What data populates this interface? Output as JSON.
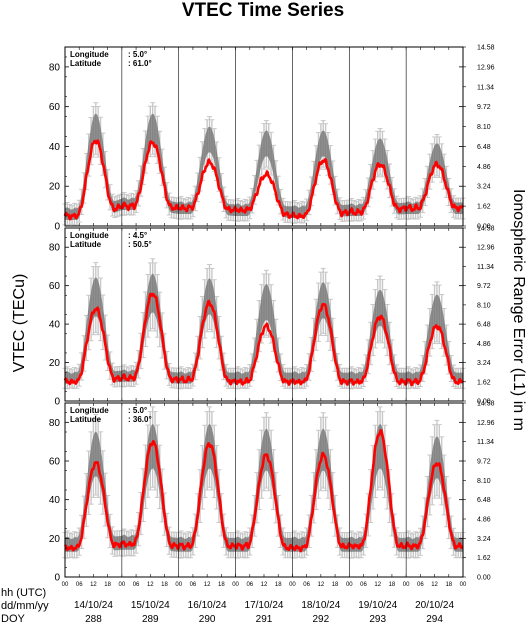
{
  "title": "VTEC Time Series",
  "y_label_left": "VTEC (TECu)",
  "y_label_right": "Ionospheric Range Error (L1) in m",
  "row_labels": [
    "hh (UTC)",
    "dd/mm/yy",
    "DOY"
  ],
  "colors": {
    "mean_curve": "#ff0000",
    "spread_band": "#6e6e6e",
    "error_bars": "#c8c8c8",
    "frame": "#000000"
  },
  "chart_data": [
    {
      "type": "line",
      "panel": "top",
      "location": {
        "longitude_label": "Longitude",
        "longitude": ": 5.0°",
        "latitude_label": "Latitude",
        "latitude": ": 61.0°"
      },
      "ylim": [
        0,
        90
      ],
      "yticks": [
        0,
        20,
        40,
        60,
        80
      ],
      "right_ticks": [
        "0.00",
        "1.62",
        "3.24",
        "4.86",
        "6.48",
        "8.10",
        "9.72",
        "11.34",
        "12.96",
        "14.58"
      ],
      "hour_ticks": [
        "00",
        "06",
        "12",
        "18"
      ],
      "days": [
        {
          "date": "14/10/24",
          "doy": "288"
        },
        {
          "date": "15/10/24",
          "doy": "289"
        },
        {
          "date": "16/10/24",
          "doy": "290"
        },
        {
          "date": "17/10/24",
          "doy": "291"
        },
        {
          "date": "18/10/24",
          "doy": "292"
        },
        {
          "date": "19/10/24",
          "doy": "293"
        },
        {
          "date": "20/10/24",
          "doy": "294"
        }
      ],
      "series": [
        {
          "peaks": [
            43,
            42,
            32,
            26,
            33,
            31,
            31
          ],
          "nights": [
            5,
            10,
            9,
            8,
            5,
            7,
            9
          ]
        },
        {
          "peaks": [
            52,
            52,
            46,
            44,
            44,
            40,
            38
          ],
          "nights": [
            7,
            12,
            10,
            9,
            8,
            9,
            10
          ]
        },
        {
          "peaks": [
            10,
            10,
            9,
            9,
            9,
            9,
            8
          ],
          "nights": [
            4,
            4,
            4,
            4,
            4,
            4,
            4
          ]
        }
      ]
    },
    {
      "type": "line",
      "panel": "middle",
      "location": {
        "longitude_label": "Longitude",
        "longitude": ": 4.5°",
        "latitude_label": "Latitude",
        "latitude": ": 50.5°"
      },
      "ylim": [
        0,
        90
      ],
      "yticks": [
        0,
        20,
        40,
        60,
        80
      ],
      "right_ticks": [
        "0.00",
        "1.62",
        "3.24",
        "4.86",
        "6.48",
        "8.10",
        "9.72",
        "11.34",
        "12.96",
        "14.58"
      ],
      "hour_ticks": [
        "00",
        "06",
        "12",
        "18"
      ],
      "days": [
        {
          "date": "14/10/24",
          "doy": "288"
        },
        {
          "date": "15/10/24",
          "doy": "289"
        },
        {
          "date": "16/10/24",
          "doy": "290"
        },
        {
          "date": "17/10/24",
          "doy": "291"
        },
        {
          "date": "18/10/24",
          "doy": "292"
        },
        {
          "date": "19/10/24",
          "doy": "293"
        },
        {
          "date": "20/10/24",
          "doy": "294"
        }
      ],
      "series": [
        {
          "peaks": [
            48,
            56,
            51,
            39,
            50,
            44,
            39
          ],
          "nights": [
            10,
            12,
            11,
            10,
            10,
            10,
            10
          ]
        },
        {
          "peaks": [
            58,
            60,
            58,
            55,
            56,
            52,
            50
          ],
          "nights": [
            13,
            14,
            13,
            13,
            13,
            13,
            13
          ]
        },
        {
          "peaks": [
            14,
            14,
            13,
            13,
            13,
            13,
            12
          ],
          "nights": [
            4,
            4,
            4,
            4,
            4,
            4,
            4
          ]
        }
      ]
    },
    {
      "type": "line",
      "panel": "bottom",
      "location": {
        "longitude_label": "Longitude",
        "longitude": ": 5.0°",
        "latitude_label": "Latitude",
        "latitude": ": 36.0°"
      },
      "ylim": [
        0,
        90
      ],
      "yticks": [
        0,
        20,
        40,
        60,
        80
      ],
      "right_ticks": [
        "0.00",
        "1.62",
        "3.24",
        "4.86",
        "6.48",
        "8.10",
        "9.72",
        "11.34",
        "12.96",
        "14.58"
      ],
      "hour_ticks": [
        "00",
        "06",
        "12",
        "18"
      ],
      "days": [
        {
          "date": "14/10/24",
          "doy": "288"
        },
        {
          "date": "15/10/24",
          "doy": "289"
        },
        {
          "date": "16/10/24",
          "doy": "290"
        },
        {
          "date": "17/10/24",
          "doy": "291"
        },
        {
          "date": "18/10/24",
          "doy": "292"
        },
        {
          "date": "19/10/24",
          "doy": "293"
        },
        {
          "date": "20/10/24",
          "doy": "294"
        }
      ],
      "series": [
        {
          "peaks": [
            59,
            70,
            69,
            63,
            63,
            75,
            59
          ],
          "nights": [
            15,
            17,
            16,
            16,
            15,
            16,
            16
          ]
        },
        {
          "peaks": [
            68,
            72,
            72,
            70,
            70,
            72,
            66
          ],
          "nights": [
            18,
            19,
            18,
            18,
            18,
            18,
            18
          ]
        },
        {
          "peaks": [
            16,
            16,
            16,
            15,
            15,
            16,
            15
          ],
          "nights": [
            5,
            5,
            5,
            5,
            5,
            5,
            5
          ]
        }
      ]
    }
  ]
}
